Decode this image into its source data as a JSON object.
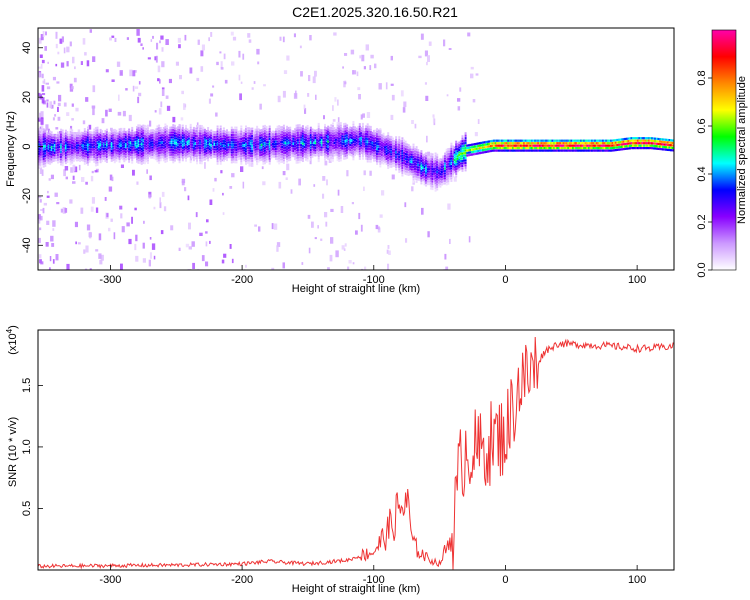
{
  "title": "C2E1.2025.320.16.50.R21",
  "chart_data": [
    {
      "type": "heatmap",
      "xlabel": "Height of straight line (km)",
      "ylabel": "Frequency (Hz)",
      "xlim": [
        -355,
        128
      ],
      "ylim": [
        -50,
        48
      ],
      "xticks": [
        -300,
        -200,
        -100,
        0,
        100
      ],
      "xtick_labels": [
        "-300",
        "-200",
        "-100",
        "0",
        "100"
      ],
      "yticks": [
        -40,
        -20,
        0,
        20,
        40
      ],
      "ytick_labels": [
        "-40",
        "-20",
        "0",
        "20",
        "40"
      ],
      "ridge": {
        "x": [
          -355,
          -300,
          -250,
          -200,
          -150,
          -110,
          -80,
          -60,
          -50,
          -40,
          -30,
          -20,
          -10,
          0,
          20,
          50,
          80,
          95,
          110,
          128
        ],
        "freq": [
          0,
          1,
          2,
          1,
          2,
          3,
          -3,
          -9,
          -10,
          -5,
          -1,
          0,
          1,
          1,
          1,
          1,
          1,
          2,
          2,
          1
        ]
      },
      "colorbar": {
        "label": "Normalized spectral amplitude",
        "range": [
          0.0,
          1.0
        ],
        "ticks": [
          0.0,
          0.2,
          0.4,
          0.6,
          0.8
        ],
        "tick_labels": [
          "0.0",
          "0.2",
          "0.4",
          "0.6",
          "0.8"
        ],
        "stops": [
          "#ffffff",
          "#cc99ff",
          "#8800ff",
          "#0000ff",
          "#00ffff",
          "#00ff00",
          "#ffff00",
          "#ff8800",
          "#ff0000",
          "#ff00aa"
        ]
      }
    },
    {
      "type": "line",
      "xlabel": "Height of straight line (km)",
      "ylabel": "SNR (10 * v/v)",
      "y_scale_label": "(x10",
      "y_scale_exp": "4",
      "xlim": [
        -355,
        128
      ],
      "ylim": [
        0,
        1.95
      ],
      "xticks": [
        -300,
        -200,
        -100,
        0,
        100
      ],
      "xtick_labels": [
        "-300",
        "-200",
        "-100",
        "0",
        "100"
      ],
      "yticks": [
        0.5,
        1.0,
        1.5
      ],
      "ytick_labels": [
        "0.5",
        "1.0",
        "1.5"
      ],
      "line_color": "#ee3333",
      "x": [
        -355,
        -250,
        -200,
        -180,
        -150,
        -120,
        -100,
        -90,
        -80,
        -75,
        -70,
        -60,
        -50,
        -40,
        -35,
        -30,
        -20,
        -10,
        0,
        5,
        10,
        15,
        20,
        30,
        40,
        60,
        80,
        100,
        110,
        128
      ],
      "values": [
        0.03,
        0.04,
        0.05,
        0.07,
        0.05,
        0.08,
        0.15,
        0.3,
        0.5,
        0.55,
        0.2,
        0.1,
        0.05,
        0.3,
        0.8,
        1.0,
        0.95,
        1.05,
        1.1,
        1.3,
        1.5,
        1.55,
        1.6,
        1.78,
        1.84,
        1.83,
        1.82,
        1.8,
        1.8,
        1.82
      ]
    }
  ]
}
